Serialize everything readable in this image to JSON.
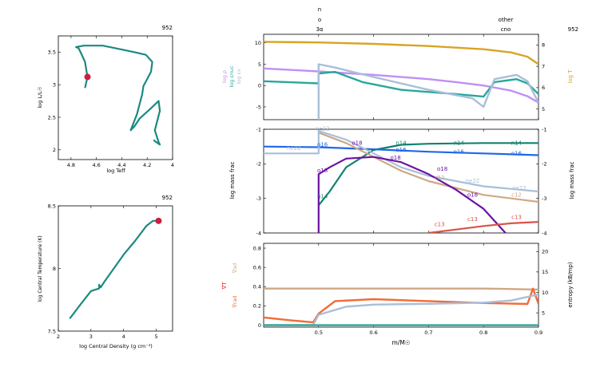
{
  "model_number": "952",
  "chart_data": [
    {
      "id": "hr",
      "type": "line",
      "title": "952",
      "xlabel": "log Teff",
      "ylabel": "log L/L☉",
      "xlim": [
        4.9,
        4.0
      ],
      "ylim": [
        1.85,
        3.75
      ],
      "xticks": [
        4.8,
        4.6,
        4.4,
        4.2,
        4.0
      ],
      "xtick_labels": [
        "4.8",
        "4.6",
        "4.4",
        "4.2",
        "4"
      ],
      "yticks": [
        2.0,
        2.5,
        3.0,
        3.5
      ],
      "ytick_labels": [
        "2",
        "2.5",
        "3",
        "3.5"
      ],
      "series": [
        {
          "color": "#1a8a80",
          "x": [
            4.69,
            4.67,
            4.69,
            4.72,
            4.74,
            4.76,
            4.7,
            4.55,
            4.4,
            4.3,
            4.21,
            4.16,
            4.17,
            4.21,
            4.23,
            4.24,
            4.28,
            4.33,
            4.3,
            4.26,
            4.18,
            4.11,
            4.1,
            4.14,
            4.12,
            4.11,
            4.1,
            4.13,
            4.15
          ],
          "y": [
            2.95,
            3.12,
            3.35,
            3.48,
            3.56,
            3.58,
            3.6,
            3.6,
            3.54,
            3.5,
            3.46,
            3.35,
            3.2,
            3.05,
            2.98,
            2.85,
            2.55,
            2.3,
            2.36,
            2.48,
            2.62,
            2.75,
            2.6,
            2.3,
            2.18,
            2.12,
            2.08,
            2.12,
            2.15
          ]
        }
      ],
      "marker": {
        "x": 4.67,
        "y": 3.12,
        "color": "#cc1f3f"
      }
    },
    {
      "id": "rhot",
      "type": "line",
      "title": "952",
      "xlabel": "log Central Density (g cm⁻³)",
      "ylabel": "log Central Temperature (K)",
      "xlim": [
        2.0,
        5.5
      ],
      "ylim": [
        7.5,
        8.5
      ],
      "xticks": [
        2,
        3,
        4,
        5
      ],
      "xtick_labels": [
        "2",
        "3",
        "4",
        "5"
      ],
      "yticks": [
        7.5,
        8.0,
        8.5
      ],
      "ytick_labels": [
        "7.5",
        "8",
        "8.5"
      ],
      "series": [
        {
          "color": "#1a8a80",
          "x": [
            2.35,
            2.7,
            3.0,
            3.25,
            3.25,
            3.3,
            3.4,
            3.7,
            4.0,
            4.35,
            4.7,
            4.9,
            5.05
          ],
          "y": [
            7.6,
            7.72,
            7.82,
            7.84,
            7.87,
            7.85,
            7.89,
            8.0,
            8.11,
            8.22,
            8.34,
            8.38,
            8.38
          ]
        }
      ],
      "marker": {
        "x": 5.07,
        "y": 8.38,
        "color": "#cc1f3f"
      }
    },
    {
      "id": "profile_top",
      "type": "line",
      "title": "952",
      "xlim": [
        0.4,
        0.9
      ],
      "ylim_left": [
        -8.0,
        12.0
      ],
      "yticks_left": [
        -5,
        0,
        5,
        10
      ],
      "ytick_labels_left": [
        "-5",
        "0",
        "5",
        "10"
      ],
      "ylim_right": [
        4.5,
        8.5
      ],
      "yticks_right": [
        5,
        6,
        7,
        8
      ],
      "ytick_labels_right": [
        "5",
        "6",
        "7",
        "8"
      ],
      "ylabels_left": [
        {
          "text": "log ρ",
          "color": "#bf8ff5"
        },
        {
          "text": "log εnuc",
          "color": "#2aa79b"
        },
        {
          "text": "log εν",
          "color": "#a8bfd8"
        }
      ],
      "ylabel_right": {
        "text": "log T",
        "color": "#d9a325"
      },
      "top_labels": [
        {
          "x": 0.5,
          "text": "3α",
          "above": "o"
        },
        {
          "x": 0.82,
          "text": "cno",
          "above": "other"
        }
      ],
      "top_title": "n",
      "series": [
        {
          "name": "log T",
          "axis": "right",
          "color": "#d9a325",
          "x": [
            0.4,
            0.5,
            0.6,
            0.7,
            0.8,
            0.85,
            0.88,
            0.9
          ],
          "y": [
            8.15,
            8.12,
            8.05,
            7.95,
            7.8,
            7.65,
            7.45,
            7.1
          ]
        },
        {
          "name": "log ρ",
          "axis": "left",
          "color": "#bf8ff5",
          "x": [
            0.4,
            0.5,
            0.6,
            0.7,
            0.75,
            0.8,
            0.85,
            0.88,
            0.9
          ],
          "y": [
            4.0,
            3.3,
            2.5,
            1.5,
            0.8,
            0.0,
            -1.2,
            -2.5,
            -4.0
          ]
        },
        {
          "name": "log εnuc",
          "axis": "left",
          "color": "#2aa79b",
          "x": [
            0.4,
            0.5,
            0.5,
            0.53,
            0.58,
            0.65,
            0.75,
            0.8,
            0.82,
            0.86,
            0.88,
            0.9
          ],
          "y": [
            1.0,
            0.5,
            2.8,
            3.2,
            0.8,
            -1.0,
            -2.0,
            -2.6,
            0.8,
            1.5,
            0.5,
            -2.0
          ]
        },
        {
          "name": "log εν",
          "axis": "left",
          "color": "#a8bfd8",
          "x": [
            0.5,
            0.5,
            0.53,
            0.6,
            0.7,
            0.78,
            0.8,
            0.82,
            0.86,
            0.88,
            0.9
          ],
          "y": [
            -8.0,
            5.0,
            4.2,
            2.0,
            -1.0,
            -3.0,
            -5.0,
            1.5,
            2.5,
            1.0,
            -4.0
          ]
        }
      ]
    },
    {
      "id": "abundance",
      "type": "line",
      "ylabel": "log mass frac",
      "ylabel_right": "log mass frac",
      "xlim": [
        0.4,
        0.9
      ],
      "ylim": [
        -4.0,
        -1.0
      ],
      "yticks": [
        -4,
        -3,
        -2,
        -1
      ],
      "ytick_labels": [
        "-4",
        "-3",
        "-2",
        "-1"
      ],
      "series": [
        {
          "name": "n14",
          "color": "#13826f",
          "x": [
            0.5,
            0.52,
            0.55,
            0.6,
            0.65,
            0.7,
            0.8,
            0.9
          ],
          "y": [
            -3.2,
            -2.8,
            -2.1,
            -1.6,
            -1.45,
            -1.42,
            -1.4,
            -1.4
          ],
          "labels": [
            {
              "x": 0.507,
              "y": -3.0
            },
            {
              "x": 0.65,
              "y": -1.45
            },
            {
              "x": 0.755,
              "y": -1.45
            },
            {
              "x": 0.86,
              "y": -1.45
            }
          ]
        },
        {
          "name": "o16",
          "color": "#1f67e8",
          "x": [
            0.4,
            0.5,
            0.6,
            0.7,
            0.8,
            0.9
          ],
          "y": [
            -1.5,
            -1.52,
            -1.58,
            -1.65,
            -1.7,
            -1.75
          ],
          "labels": [
            {
              "x": 0.507,
              "y": -1.5
            },
            {
              "x": 0.65,
              "y": -1.65
            },
            {
              "x": 0.755,
              "y": -1.7
            },
            {
              "x": 0.86,
              "y": -1.75
            }
          ]
        },
        {
          "name": "c12",
          "color": "#cfa885",
          "x": [
            0.5,
            0.55,
            0.6,
            0.65,
            0.7,
            0.8,
            0.9
          ],
          "y": [
            -1.1,
            -1.4,
            -1.8,
            -2.2,
            -2.5,
            -2.9,
            -3.1
          ],
          "labels": [
            {
              "x": 0.72,
              "y": -2.45
            },
            {
              "x": 0.86,
              "y": -2.95
            }
          ]
        },
        {
          "name": "ne22",
          "color": "#a8bfd8",
          "x": [
            0.4,
            0.5,
            0.5,
            0.55,
            0.6,
            0.65,
            0.7,
            0.8,
            0.9
          ],
          "y": [
            -1.7,
            -1.7,
            -1.05,
            -1.3,
            -1.7,
            -2.1,
            -2.35,
            -2.65,
            -2.8
          ],
          "labels": [
            {
              "x": 0.455,
              "y": -1.6
            },
            {
              "x": 0.507,
              "y": -1.03
            },
            {
              "x": 0.78,
              "y": -2.55
            },
            {
              "x": 0.865,
              "y": -2.75
            }
          ]
        },
        {
          "name": "o18",
          "color": "#6b12a3",
          "x": [
            0.5,
            0.5,
            0.52,
            0.55,
            0.6,
            0.65,
            0.7,
            0.75,
            0.8,
            0.84
          ],
          "y": [
            -4.0,
            -2.3,
            -2.1,
            -1.85,
            -1.8,
            -1.95,
            -2.3,
            -2.75,
            -3.3,
            -4.0
          ],
          "labels": [
            {
              "x": 0.507,
              "y": -2.25
            },
            {
              "x": 0.57,
              "y": -1.45
            },
            {
              "x": 0.64,
              "y": -1.88
            },
            {
              "x": 0.725,
              "y": -2.2
            },
            {
              "x": 0.78,
              "y": -2.95
            }
          ]
        },
        {
          "name": "c13",
          "color": "#d9534a",
          "x": [
            0.7,
            0.75,
            0.8,
            0.85,
            0.9
          ],
          "y": [
            -4.0,
            -3.9,
            -3.8,
            -3.72,
            -3.68
          ],
          "labels": [
            {
              "x": 0.72,
              "y": -3.8
            },
            {
              "x": 0.78,
              "y": -3.65
            },
            {
              "x": 0.86,
              "y": -3.6
            }
          ]
        }
      ]
    },
    {
      "id": "gradients",
      "type": "line",
      "xlabel": "m/M☉",
      "xlim": [
        0.4,
        0.9
      ],
      "xticks": [
        0.5,
        0.6,
        0.7,
        0.8,
        0.9
      ],
      "xtick_labels": [
        "0.5",
        "0.6",
        "0.7",
        "0.8",
        "0.9"
      ],
      "ylim": [
        -0.02,
        0.85
      ],
      "yticks": [
        0.0,
        0.2,
        0.4,
        0.6,
        0.8
      ],
      "ytick_labels": [
        "0",
        "0.2",
        "0.4",
        "0.6",
        "0.8"
      ],
      "ylim_right": [
        1.5,
        22.0
      ],
      "yticks_right": [
        5,
        10,
        15,
        20
      ],
      "ytick_labels_right": [
        "5",
        "10",
        "15",
        "20"
      ],
      "ylabels_left": [
        {
          "text": "∇ad",
          "color": "#cfa885"
        },
        {
          "text": "∇T",
          "color": "#e8231f"
        },
        {
          "text": "∇rad",
          "color": "#f26b38"
        }
      ],
      "ylabel_right": "entropy (kB/mp)",
      "series": [
        {
          "name": "∇ad",
          "color": "#cfa885",
          "x": [
            0.4,
            0.6,
            0.8,
            0.9
          ],
          "y": [
            0.38,
            0.38,
            0.38,
            0.37
          ]
        },
        {
          "name": "∇rad",
          "color": "#f26b38",
          "x": [
            0.4,
            0.45,
            0.49,
            0.5,
            0.53,
            0.6,
            0.7,
            0.8,
            0.88,
            0.89,
            0.9
          ],
          "y": [
            0.08,
            0.05,
            0.03,
            0.12,
            0.25,
            0.27,
            0.25,
            0.23,
            0.22,
            0.38,
            0.22
          ]
        },
        {
          "name": "entropy",
          "axis": "right",
          "color": "#a8bfd8",
          "x": [
            0.4,
            0.49,
            0.5,
            0.55,
            0.6,
            0.7,
            0.8,
            0.85,
            0.9
          ],
          "y": [
            2.0,
            2.0,
            4.5,
            6.5,
            7.0,
            7.2,
            7.5,
            8.0,
            9.5
          ]
        },
        {
          "name": "∇T",
          "color": "#2aa79b",
          "x": [
            0.4,
            0.9
          ],
          "y": [
            0.0,
            0.0
          ]
        }
      ]
    }
  ]
}
